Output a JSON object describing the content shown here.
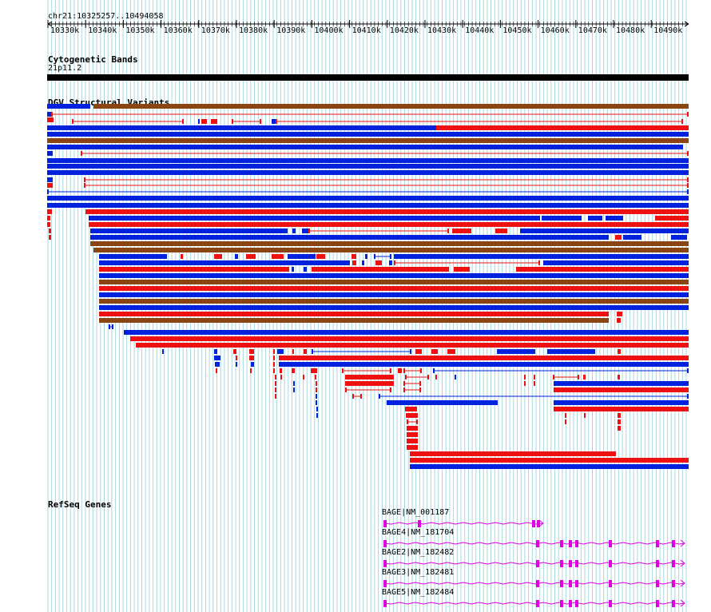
{
  "ruler": {
    "region": "chr21:10325257..10494058",
    "ticks": [
      "10330k",
      "10340k",
      "10350k",
      "10360k",
      "10370k",
      "10380k",
      "10390k",
      "10400k",
      "10410k",
      "10420k",
      "10430k",
      "10440k",
      "10450k",
      "10460k",
      "10470k",
      "10480k",
      "10490k"
    ]
  },
  "tracks": {
    "cytoband": {
      "title": "Cytogenetic Bands",
      "band": "21p11.2"
    },
    "dgv": {
      "title": "DGV Structural Variants"
    },
    "refseq": {
      "title": "RefSeq Genes"
    }
  },
  "colors": {
    "gain": "#0022dd",
    "loss": "#ee1111",
    "gain_loss": "#8b4513",
    "gene": "#e000e0",
    "grid": "#a8d8e0",
    "band": "#000000"
  },
  "genes": [
    {
      "label": "BAGE|NM_001187"
    },
    {
      "label": "BAGE4|NM_181704"
    },
    {
      "label": "BAGE2|NM_182482"
    },
    {
      "label": "BAGE3|NM_182481"
    },
    {
      "label": "BAGE5|NM_182484"
    }
  ]
}
